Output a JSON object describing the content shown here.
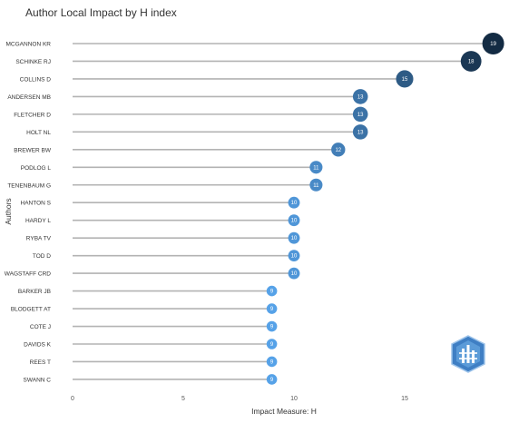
{
  "chart_data": {
    "type": "lollipop",
    "title": "Author Local Impact by H index",
    "xlabel": "Impact Measure: H",
    "ylabel": "Authors",
    "xlim": [
      0,
      19
    ],
    "xticks": [
      "0",
      "5",
      "10",
      "15"
    ],
    "grid": false,
    "legend": "none",
    "categories": [
      "MCGANNON KR",
      "SCHINKE RJ",
      "COLLINS D",
      "ANDERSEN MB",
      "FLETCHER D",
      "HOLT NL",
      "BREWER BW",
      "PODLOG L",
      "TENENBAUM G",
      "HANTON S",
      "HARDY L",
      "RYBA TV",
      "TOD D",
      "WAGSTAFF CRD",
      "BARKER JB",
      "BLODGETT AT",
      "COTE J",
      "DAVIDS K",
      "REES T",
      "SWANN C"
    ],
    "values": [
      19,
      18,
      15,
      13,
      13,
      13,
      12,
      11,
      11,
      10,
      10,
      10,
      10,
      10,
      9,
      9,
      9,
      9,
      9,
      9
    ],
    "data_labels": [
      "19",
      "18",
      "15",
      "13",
      "13",
      "13",
      "12",
      "11",
      "11",
      "10",
      "10",
      "10",
      "10",
      "10",
      "9",
      "9",
      "9",
      "9",
      "9",
      "9"
    ],
    "colors": {
      "stem": "#b3b3b3",
      "low": "#56a2e8",
      "high": "#132b43"
    }
  },
  "logo": {
    "icon": "bibliometrix-logo-icon"
  }
}
